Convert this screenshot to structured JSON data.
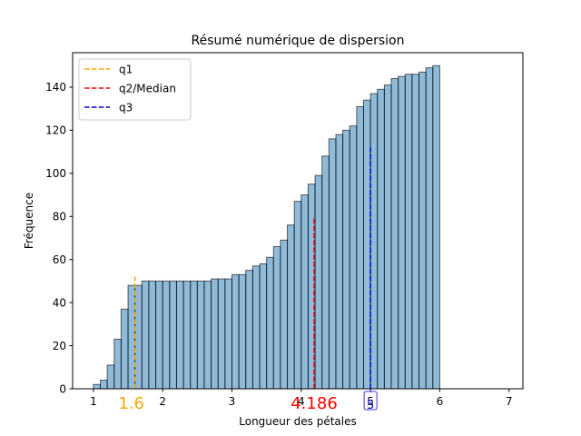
{
  "chart_data": {
    "type": "bar",
    "title": "Résumé numérique de dispersion",
    "xlabel": "Longueur des pétales",
    "ylabel": "Fréquence",
    "xlim": [
      0.7,
      7.2
    ],
    "ylim": [
      0,
      156
    ],
    "x_ticks": [
      1,
      2,
      3,
      4,
      5,
      6,
      7
    ],
    "y_ticks": [
      0,
      20,
      40,
      60,
      80,
      100,
      120,
      140
    ],
    "bin_start": 1.0,
    "bin_width": 0.1,
    "values": [
      2,
      4,
      11,
      23,
      37,
      48,
      48,
      50,
      50,
      50,
      50,
      50,
      50,
      50,
      50,
      50,
      50,
      51,
      51,
      51,
      53,
      53,
      55,
      57,
      58,
      61,
      66,
      69,
      76,
      87,
      90,
      95,
      99,
      108,
      116,
      118,
      120,
      122,
      131,
      134,
      137,
      139,
      141,
      144,
      145,
      146,
      146,
      147,
      149,
      150
    ],
    "bar_color": "#1f77b4",
    "quartiles": [
      {
        "name": "q1",
        "value": 1.6,
        "label": "1.6",
        "line_top": 52,
        "color": "#FFA500"
      },
      {
        "name": "q2/Median",
        "value": 4.186,
        "label": "4.186",
        "line_top": 80,
        "color": "#FF0000"
      },
      {
        "name": "q3",
        "value": 5.0,
        "label": "5",
        "line_top": 112,
        "color": "#0000CD"
      }
    ],
    "legend": {
      "position": "top-left",
      "entries": [
        "q1",
        "q2/Median",
        "q3"
      ]
    },
    "grid": false
  }
}
